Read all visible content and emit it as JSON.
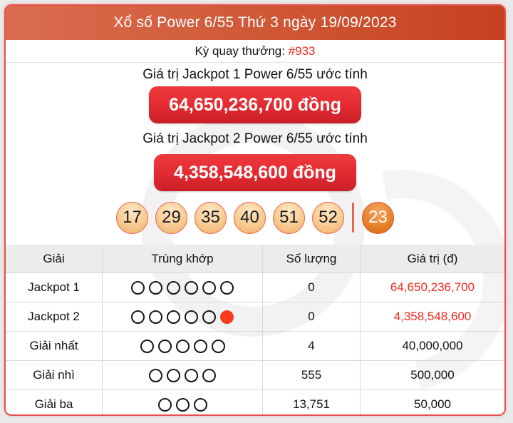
{
  "header": {
    "title": "Xổ số Power 6/55 Thứ 3 ngày 19/09/2023"
  },
  "draw": {
    "label": "Kỳ quay thưởng: ",
    "number": "#933"
  },
  "jackpots": [
    {
      "label": "Giá trị Jackpot 1 Power 6/55 ước tính",
      "amount": "64,650,236,700 đồng"
    },
    {
      "label": "Giá trị Jackpot 2 Power 6/55 ước tính",
      "amount": "4,358,548,600 đồng"
    }
  ],
  "balls": {
    "main": [
      "17",
      "29",
      "35",
      "40",
      "51",
      "52"
    ],
    "special": "23"
  },
  "table": {
    "columns": [
      "Giải",
      "Trùng khớp",
      "Số lượng",
      "Giá trị (đ)"
    ],
    "rows": [
      {
        "prize": "Jackpot 1",
        "match_open": 6,
        "match_filled": 0,
        "quantity": "0",
        "value": "64,650,236,700",
        "value_red": true
      },
      {
        "prize": "Jackpot 2",
        "match_open": 5,
        "match_filled": 1,
        "quantity": "0",
        "value": "4,358,548,600",
        "value_red": true
      },
      {
        "prize": "Giải nhất",
        "match_open": 5,
        "match_filled": 0,
        "quantity": "4",
        "value": "40,000,000",
        "value_red": false
      },
      {
        "prize": "Giải nhì",
        "match_open": 4,
        "match_filled": 0,
        "quantity": "555",
        "value": "500,000",
        "value_red": false
      },
      {
        "prize": "Giải ba",
        "match_open": 3,
        "match_filled": 0,
        "quantity": "13,751",
        "value": "50,000",
        "value_red": false
      }
    ]
  },
  "colors": {
    "accent_red": "#f5281e",
    "header_gradient_start": "#db6c4f",
    "header_gradient_end": "#c64120",
    "button_red": "#e22a31",
    "card_border": "#e6514e",
    "ball_border": "#ec6a52",
    "special_ball": "#e8832f",
    "filled_circle": "#f93b20"
  }
}
